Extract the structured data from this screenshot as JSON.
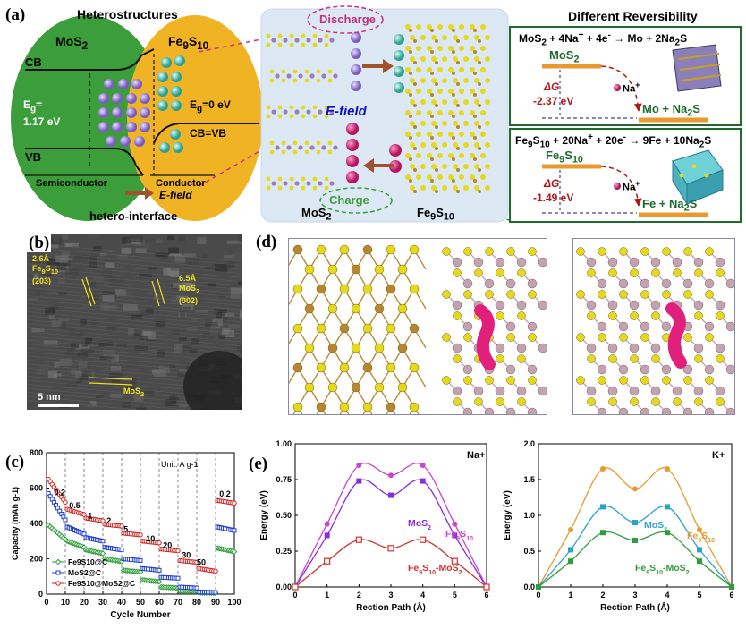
{
  "panels": {
    "a": {
      "label": "(a)",
      "left_title": "Heterostructures",
      "mos2": "MoS2",
      "fe9s10": "Fe9S10",
      "cb": "CB",
      "vb": "VB",
      "eg_left": "Eg= 1.17 eV",
      "eg_right": "Eg=0 eV",
      "cb_vb": "CB=VB",
      "semiconductor": "Semiconductor",
      "conductor": "Conductor",
      "efield_bottom": "E-field",
      "hetero_interface": "hetero-interface",
      "discharge": "Discharge",
      "charge": "Charge",
      "efield_center": "E-field",
      "mos2_bottom": "MoS2",
      "fe9s10_bottom": "Fe9S10",
      "right_title": "Different Reversibility",
      "reaction1": "MoS2 + 4Na+ + 4e- → Mo + 2Na2S",
      "mos2_level": "MoS2",
      "dg1_label": "ΔG",
      "dg1_value": "-2.37 eV",
      "na_ion_1": "Na+",
      "product1": "Mo + Na2S",
      "reaction2": "Fe9S10 + 20Na+ + 20e- → 9Fe + 10Na2S",
      "fe9s10_level": "Fe9S10",
      "dg2_label": "ΔG",
      "dg2_value": "-1.49 eV",
      "na_ion_2": "Na+",
      "product2": "Fe + Na2S"
    },
    "b": {
      "label": "(b)",
      "ann1": "2.6Å Fe9S10 (203)",
      "ann2": "6.5Å MoS2 (002)",
      "ann3": "MoS2",
      "scale": "5 nm"
    },
    "c": {
      "label": "(c)"
    },
    "d": {
      "label": "(d)"
    },
    "e": {
      "label": "(e)"
    }
  },
  "colors": {
    "green": "#3c9e3a",
    "gold": "#f0b323",
    "ion_purple": "#9b7fd0",
    "ion_teal": "#5fbfb3",
    "na_pink": "#d8247a",
    "box_green": "#1e6b2d",
    "dg_red": "#b01818",
    "level_orange": "#e89a2e",
    "sulfur": "#e6d91a",
    "mo": "#c3a3b0",
    "fe": "#b8862f"
  },
  "chart_data": [
    {
      "id": "rate-capability",
      "type": "line",
      "xlabel": "Cycle Number",
      "ylabel": "Capacity (mAh g-1)",
      "xlim": [
        0,
        100
      ],
      "ylim": [
        0,
        800
      ],
      "xticks": [
        0,
        10,
        20,
        30,
        40,
        50,
        60,
        70,
        80,
        90,
        100
      ],
      "yticks": [
        0,
        200,
        400,
        600,
        800
      ],
      "annotation": "Unit: A g-1",
      "rate_labels": [
        "0.2",
        "0.5",
        "1",
        "2",
        "5",
        "10",
        "20",
        "30",
        "50",
        "0.2"
      ],
      "legend": [
        "Fe9S10@C",
        "MoS2@C",
        "Fe9S10@MoS2@C"
      ],
      "segments": [
        {
          "start": 1,
          "end": 10,
          "Fe9S10@C": [
            390,
            310
          ],
          "MoS2@C": [
            570,
            420
          ],
          "Fe9S10@MoS2@C": [
            650,
            520
          ]
        },
        {
          "start": 11,
          "end": 20,
          "Fe9S10@C": [
            300,
            265
          ],
          "MoS2@C": [
            380,
            340
          ],
          "Fe9S10@MoS2@C": [
            480,
            450
          ]
        },
        {
          "start": 21,
          "end": 30,
          "Fe9S10@C": [
            250,
            230
          ],
          "MoS2@C": [
            320,
            300
          ],
          "Fe9S10@MoS2@C": [
            430,
            415
          ]
        },
        {
          "start": 31,
          "end": 40,
          "Fe9S10@C": [
            200,
            185
          ],
          "MoS2@C": [
            265,
            250
          ],
          "Fe9S10@MoS2@C": [
            395,
            385
          ]
        },
        {
          "start": 41,
          "end": 50,
          "Fe9S10@C": [
            135,
            125
          ],
          "MoS2@C": [
            200,
            190
          ],
          "Fe9S10@MoS2@C": [
            345,
            335
          ]
        },
        {
          "start": 51,
          "end": 60,
          "Fe9S10@C": [
            80,
            70
          ],
          "MoS2@C": [
            145,
            135
          ],
          "Fe9S10@MoS2@C": [
            300,
            290
          ]
        },
        {
          "start": 61,
          "end": 70,
          "Fe9S10@C": [
            40,
            35
          ],
          "MoS2@C": [
            95,
            90
          ],
          "Fe9S10@MoS2@C": [
            255,
            245
          ]
        },
        {
          "start": 71,
          "end": 80,
          "Fe9S10@C": [
            18,
            15
          ],
          "MoS2@C": [
            40,
            35
          ],
          "Fe9S10@MoS2@C": [
            190,
            180
          ]
        },
        {
          "start": 81,
          "end": 90,
          "Fe9S10@C": [
            8,
            6
          ],
          "MoS2@C": [
            12,
            10
          ],
          "Fe9S10@MoS2@C": [
            145,
            130
          ]
        },
        {
          "start": 91,
          "end": 100,
          "Fe9S10@C": [
            260,
            240
          ],
          "MoS2@C": [
            380,
            360
          ],
          "Fe9S10@MoS2@C": [
            530,
            515
          ]
        }
      ]
    },
    {
      "id": "na-energy",
      "type": "line",
      "title": "Na+",
      "xlabel": "Rection Path (Å)",
      "ylabel": "Energy (eV)",
      "xlim": [
        0,
        6
      ],
      "ylim": [
        0,
        1.0
      ],
      "xticks": [
        0,
        1,
        2,
        3,
        4,
        5,
        6
      ],
      "yticks": [
        0.0,
        0.25,
        0.5,
        0.75,
        1.0
      ],
      "x": [
        0,
        1,
        2,
        3,
        4,
        5,
        6
      ],
      "series": [
        {
          "name": "Fe9S10",
          "color": "#cc44cc",
          "marker": "circle",
          "values": [
            0.0,
            0.44,
            0.85,
            0.78,
            0.85,
            0.44,
            0.0
          ]
        },
        {
          "name": "MoS2",
          "color": "#8a2be2",
          "marker": "square",
          "values": [
            0.0,
            0.36,
            0.74,
            0.64,
            0.74,
            0.36,
            0.0
          ]
        },
        {
          "name": "Fe9S10-MoS2",
          "color": "#d43030",
          "marker": "square-open",
          "values": [
            0.0,
            0.18,
            0.33,
            0.27,
            0.33,
            0.18,
            0.0
          ]
        }
      ]
    },
    {
      "id": "k-energy",
      "type": "line",
      "title": "K+",
      "xlabel": "Rection Path (Å)",
      "ylabel": "Energy (eV)",
      "xlim": [
        0,
        6
      ],
      "ylim": [
        0,
        2.0
      ],
      "xticks": [
        0,
        1,
        2,
        3,
        4,
        5,
        6
      ],
      "yticks": [
        0.0,
        0.5,
        1.0,
        1.5,
        2.0
      ],
      "x": [
        0,
        1,
        2,
        3,
        4,
        5,
        6
      ],
      "series": [
        {
          "name": "Fe9S10",
          "color": "#e89a2e",
          "marker": "circle",
          "values": [
            0.0,
            0.8,
            1.65,
            1.37,
            1.65,
            0.8,
            0.0
          ]
        },
        {
          "name": "MoS2",
          "color": "#2aa3c8",
          "marker": "square",
          "values": [
            0.0,
            0.52,
            1.12,
            0.9,
            1.12,
            0.52,
            0.0
          ]
        },
        {
          "name": "Fe9S10-MoS2",
          "color": "#2e9e3a",
          "marker": "square",
          "values": [
            0.0,
            0.36,
            0.76,
            0.65,
            0.76,
            0.36,
            0.0
          ]
        }
      ]
    }
  ]
}
